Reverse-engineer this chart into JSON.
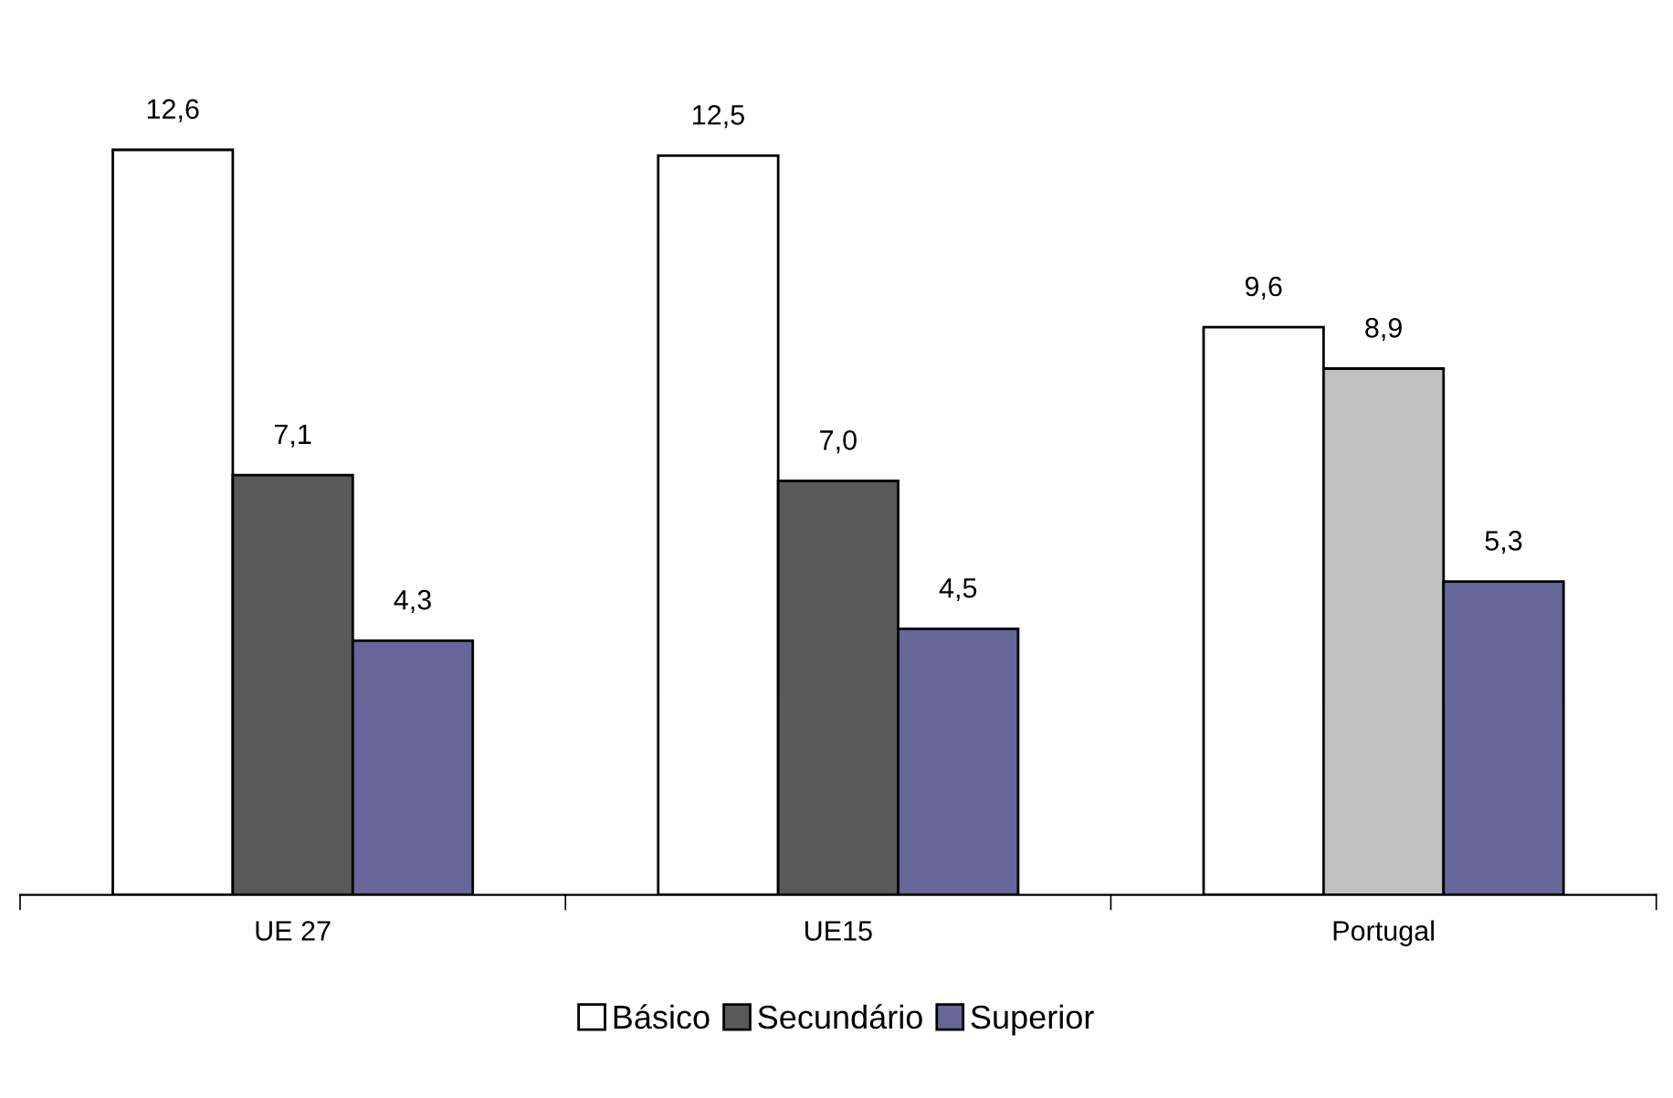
{
  "chart_data": {
    "type": "bar",
    "categories": [
      "UE 27",
      "UE15",
      "Portugal"
    ],
    "series": [
      {
        "name": "Básico",
        "color": "#ffffff",
        "values": [
          12.6,
          12.5,
          9.6
        ],
        "value_labels": [
          "12,6",
          "12,5",
          "9,6"
        ]
      },
      {
        "name": "Secundário",
        "color": "#595959",
        "colors": [
          "#595959",
          "#595959",
          "#c0c0c0"
        ],
        "values": [
          7.1,
          7.0,
          8.9
        ],
        "value_labels": [
          "7,1",
          "7,0",
          "8,9"
        ]
      },
      {
        "name": "Superior",
        "color": "#666699",
        "values": [
          4.3,
          4.5,
          5.3
        ],
        "value_labels": [
          "4,3",
          "4,5",
          "5,3"
        ]
      }
    ],
    "legend": "bottom",
    "grid": false
  }
}
